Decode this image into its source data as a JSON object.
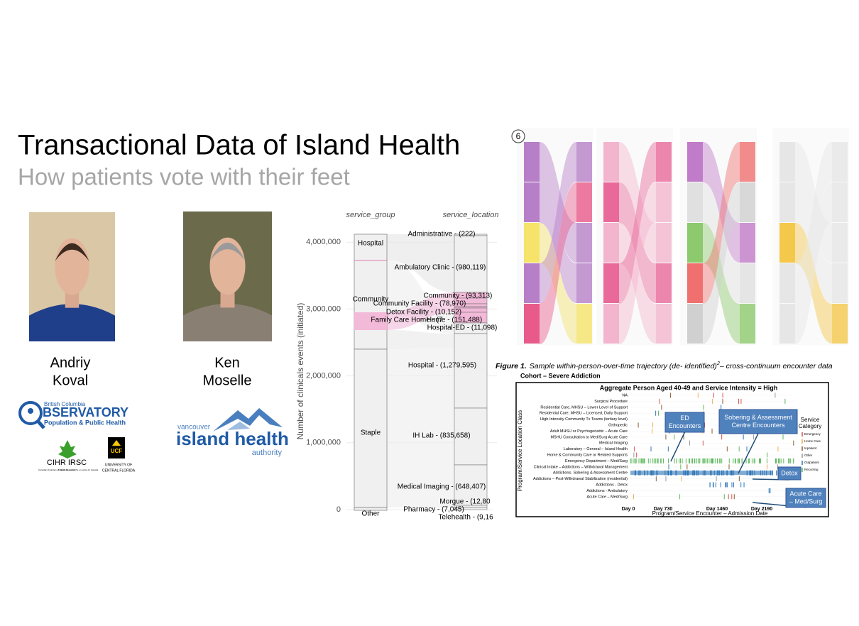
{
  "header": {
    "title": "Transactional Data of Island Health",
    "subtitle": "How patients vote with their feet"
  },
  "people": [
    {
      "first": "Andriy",
      "last": "Koval"
    },
    {
      "first": "Ken",
      "last": "Moselle"
    }
  ],
  "logos": {
    "observatory": {
      "region": "British Columbia",
      "name": "BSERVATORY",
      "tagline": "Population & Public Health"
    },
    "cihr": {
      "name": "CIHR IRSC",
      "en": "Canadian Institutes of Health Research",
      "fr": "Instituts de recherche en santé du Canada"
    },
    "ucf": {
      "mark": "UCF",
      "line1": "UNIVERSITY OF",
      "line2": "CENTRAL FLORIDA"
    },
    "island_health": {
      "top": "vancouver",
      "main": "island health",
      "bottom": "authority"
    }
  },
  "alluvial": {
    "axis_title": "Number of clinicals events (initiated)",
    "columns": [
      "service_group",
      "service_location"
    ],
    "ylim": [
      0,
      4140000
    ],
    "yticks": [
      0,
      {
        "value": 1000000,
        "label": "1,000,000"
      },
      {
        "value": 2000000,
        "label": "2,000,000"
      },
      {
        "value": 3000000,
        "label": "3,000,000"
      },
      {
        "value": 4000000,
        "label": "4,000,000"
      }
    ],
    "groups": [
      "Hospital",
      "Community",
      "Staple",
      "Other"
    ],
    "locations": [
      "Administrative - (222)",
      "Ambulatory Clinic - (980,119)",
      "Community - (93,313)",
      "Community Facility - (78,970)",
      "Detox Facility - (10,152)",
      "Family Care Home - (7",
      "Home - (151,488)",
      "Hospital-ED - (11,098)",
      "Hospital - (1,279,595)",
      "IH Lab - (835,658)",
      "Medical Imaging - (648,407)",
      "Morgue - (12,80",
      "Pharmacy - (7,045)",
      "Telehealth - (9,16"
    ]
  },
  "trajectory_figure": {
    "badge": "6",
    "caption": {
      "label": "Figure 1.",
      "text": "Sample within-person-over-time trajectory (de- identified)",
      "sup": "2",
      "rest": "– cross-continuum encounter data"
    }
  },
  "cohort_chart": {
    "cohort": "Cohort – Severe Addiction",
    "title": "Aggregate Person Aged 40-49 and Service Intensity = High",
    "y_title": "Program/Service Location Class",
    "x_title": "Program/Service Encounter – Admission Date",
    "xticks": [
      "Day 0",
      "Day 730",
      "Day 1460",
      "Day 2190"
    ],
    "rows": [
      "NA",
      "Surgical Procedure",
      "Residential Care, MHSU – Lower Level of Support",
      "Residential Care, MHSU – Licensed, Daily Support",
      "High-Intensity Community Tx Teams (tertiary level)",
      "Orthopedic",
      "Adult MHSU or Psychogeriatric – Acute Care",
      "MSHU Consultation to Med/Surg Acute Care",
      "Medical Imaging",
      "Laboratory – General – Island Health",
      "Home & Community Care or Related Supports",
      "Emergency Department – Med/Surg",
      "Clinical Intake – Addictions – Withdrawal Management",
      "Addictions- Sobering & Assessment Centre",
      "Addictions – Post-Withdrawal Stabilization (residential)",
      "Addictions - Detox",
      "Addictions - Ambulatory",
      "Acute Care – Med/Surg"
    ],
    "legend": {
      "title": [
        "Service",
        "Category"
      ],
      "items": [
        "Emergency",
        "Home Care",
        "Inpatient",
        "Other",
        "Outpatient",
        "Recurring"
      ]
    },
    "callouts": [
      [
        "ED",
        "Encounters"
      ],
      [
        "Sobering & Assessment",
        "Centre Encounters"
      ],
      [
        "Detox"
      ],
      [
        "Acute Care",
        "– Med/Surg"
      ]
    ]
  }
}
